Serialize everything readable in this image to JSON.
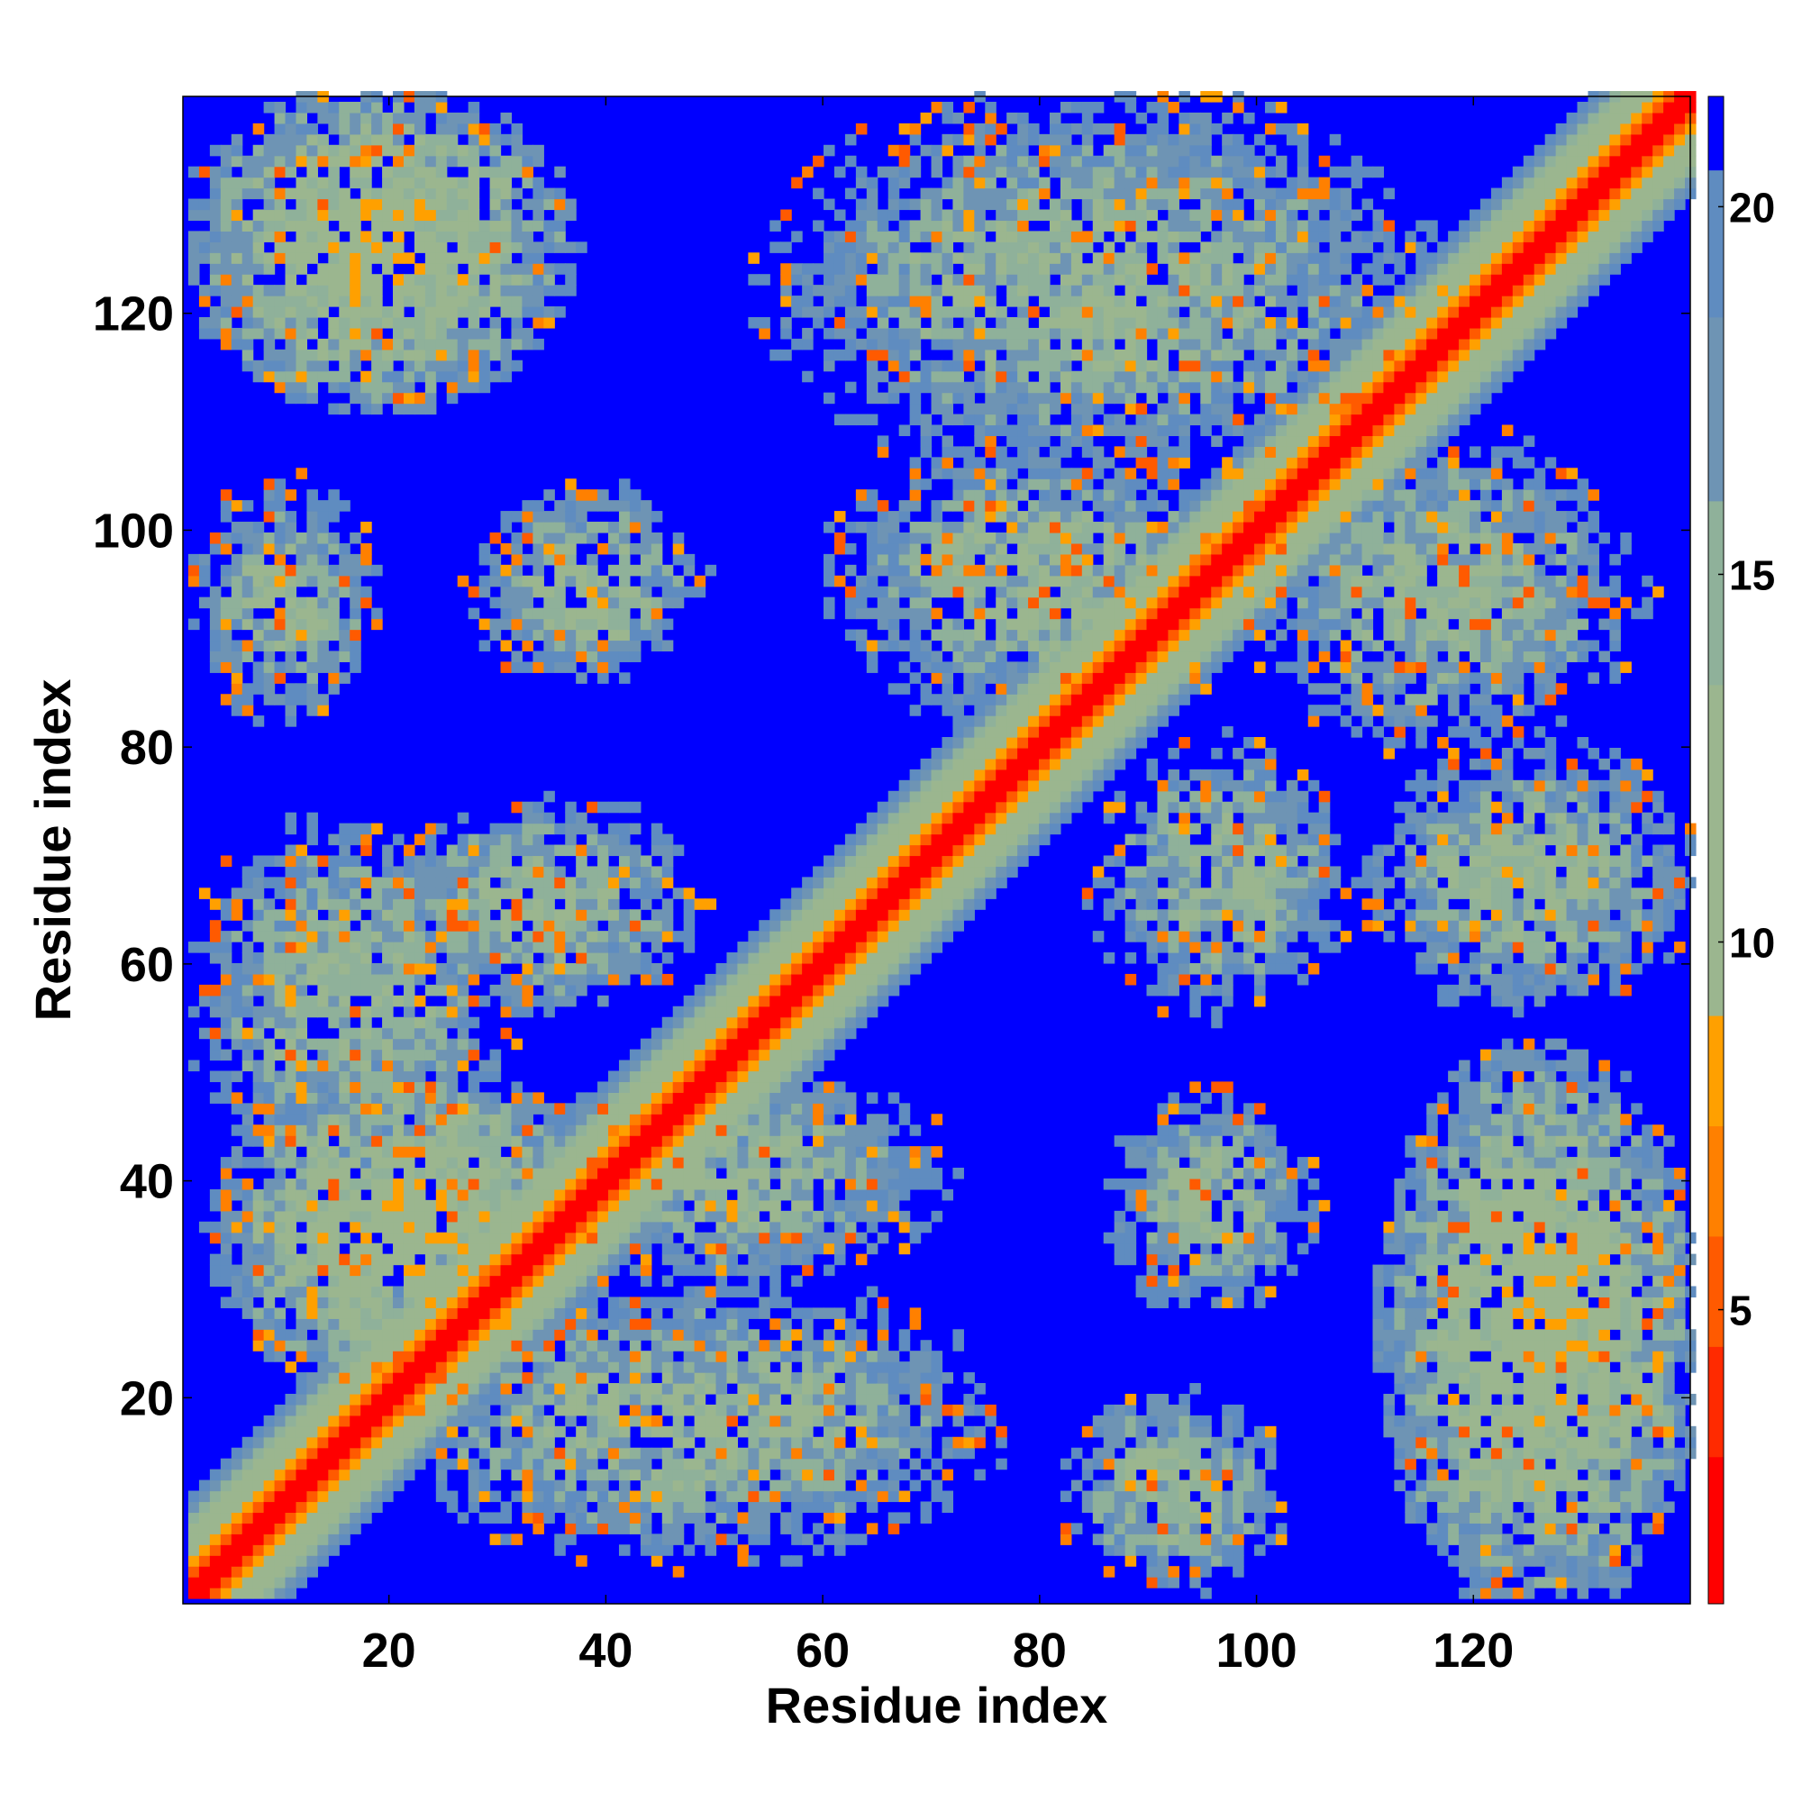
{
  "chart_data": {
    "type": "heatmap",
    "title": "",
    "xlabel": "Residue index",
    "ylabel": "Residue index",
    "n_residues": 140,
    "xlim": [
      1,
      140
    ],
    "ylim": [
      1,
      140
    ],
    "x_ticks": [
      20,
      40,
      60,
      80,
      100,
      120
    ],
    "y_ticks": [
      20,
      40,
      60,
      80,
      100,
      120
    ],
    "colorbar": {
      "ticks": [
        5,
        10,
        15,
        20
      ],
      "range": [
        1,
        21.5
      ],
      "colors": [
        "#ff0000",
        "#ff2a00",
        "#ff5a00",
        "#ff8000",
        "#ffa000",
        "#9bb68f",
        "#8fb19a",
        "#6e94b4",
        "#5f8cc0",
        "#0000ff"
      ],
      "boundaries": [
        1,
        3.0,
        4.5,
        6.0,
        7.5,
        9.0,
        13.5,
        16.0,
        18.5,
        20.5,
        21.5
      ]
    },
    "regions": [
      {
        "x": [
          1,
          35
        ],
        "y": [
          112,
          140
        ],
        "level": "low-mid"
      },
      {
        "x": [
          27,
          48
        ],
        "y": [
          85,
          104
        ],
        "level": "mid"
      },
      {
        "x": [
          1,
          18
        ],
        "y": [
          82,
          104
        ],
        "level": "mid"
      },
      {
        "x": [
          55,
          115
        ],
        "y": [
          105,
          140
        ],
        "level": "mid"
      },
      {
        "x": [
          60,
          100
        ],
        "y": [
          82,
          108
        ],
        "level": "mid"
      },
      {
        "x": [
          85,
          108
        ],
        "y": [
          55,
          80
        ],
        "level": "mid"
      },
      {
        "x": [
          100,
          135
        ],
        "y": [
          80,
          108
        ],
        "level": "mid"
      },
      {
        "x": [
          110,
          140
        ],
        "y": [
          55,
          80
        ],
        "level": "mid"
      },
      {
        "x": [
          20,
          48
        ],
        "y": [
          55,
          75
        ],
        "level": "mid"
      },
      {
        "x": [
          1,
          30
        ],
        "y": [
          40,
          73
        ],
        "level": "mid"
      },
      {
        "x": [
          4,
          38
        ],
        "y": [
          20,
          50
        ],
        "level": "low-mid"
      },
      {
        "x": [
          32,
          70
        ],
        "y": [
          30,
          50
        ],
        "level": "mid"
      },
      {
        "x": [
          20,
          75
        ],
        "y": [
          4,
          30
        ],
        "level": "mid"
      },
      {
        "x": [
          86,
          105
        ],
        "y": [
          27,
          47
        ],
        "level": "mid"
      },
      {
        "x": [
          82,
          102
        ],
        "y": [
          1,
          20
        ],
        "level": "mid"
      },
      {
        "x": [
          112,
          140
        ],
        "y": [
          1,
          50
        ],
        "level": "low-mid"
      }
    ]
  }
}
